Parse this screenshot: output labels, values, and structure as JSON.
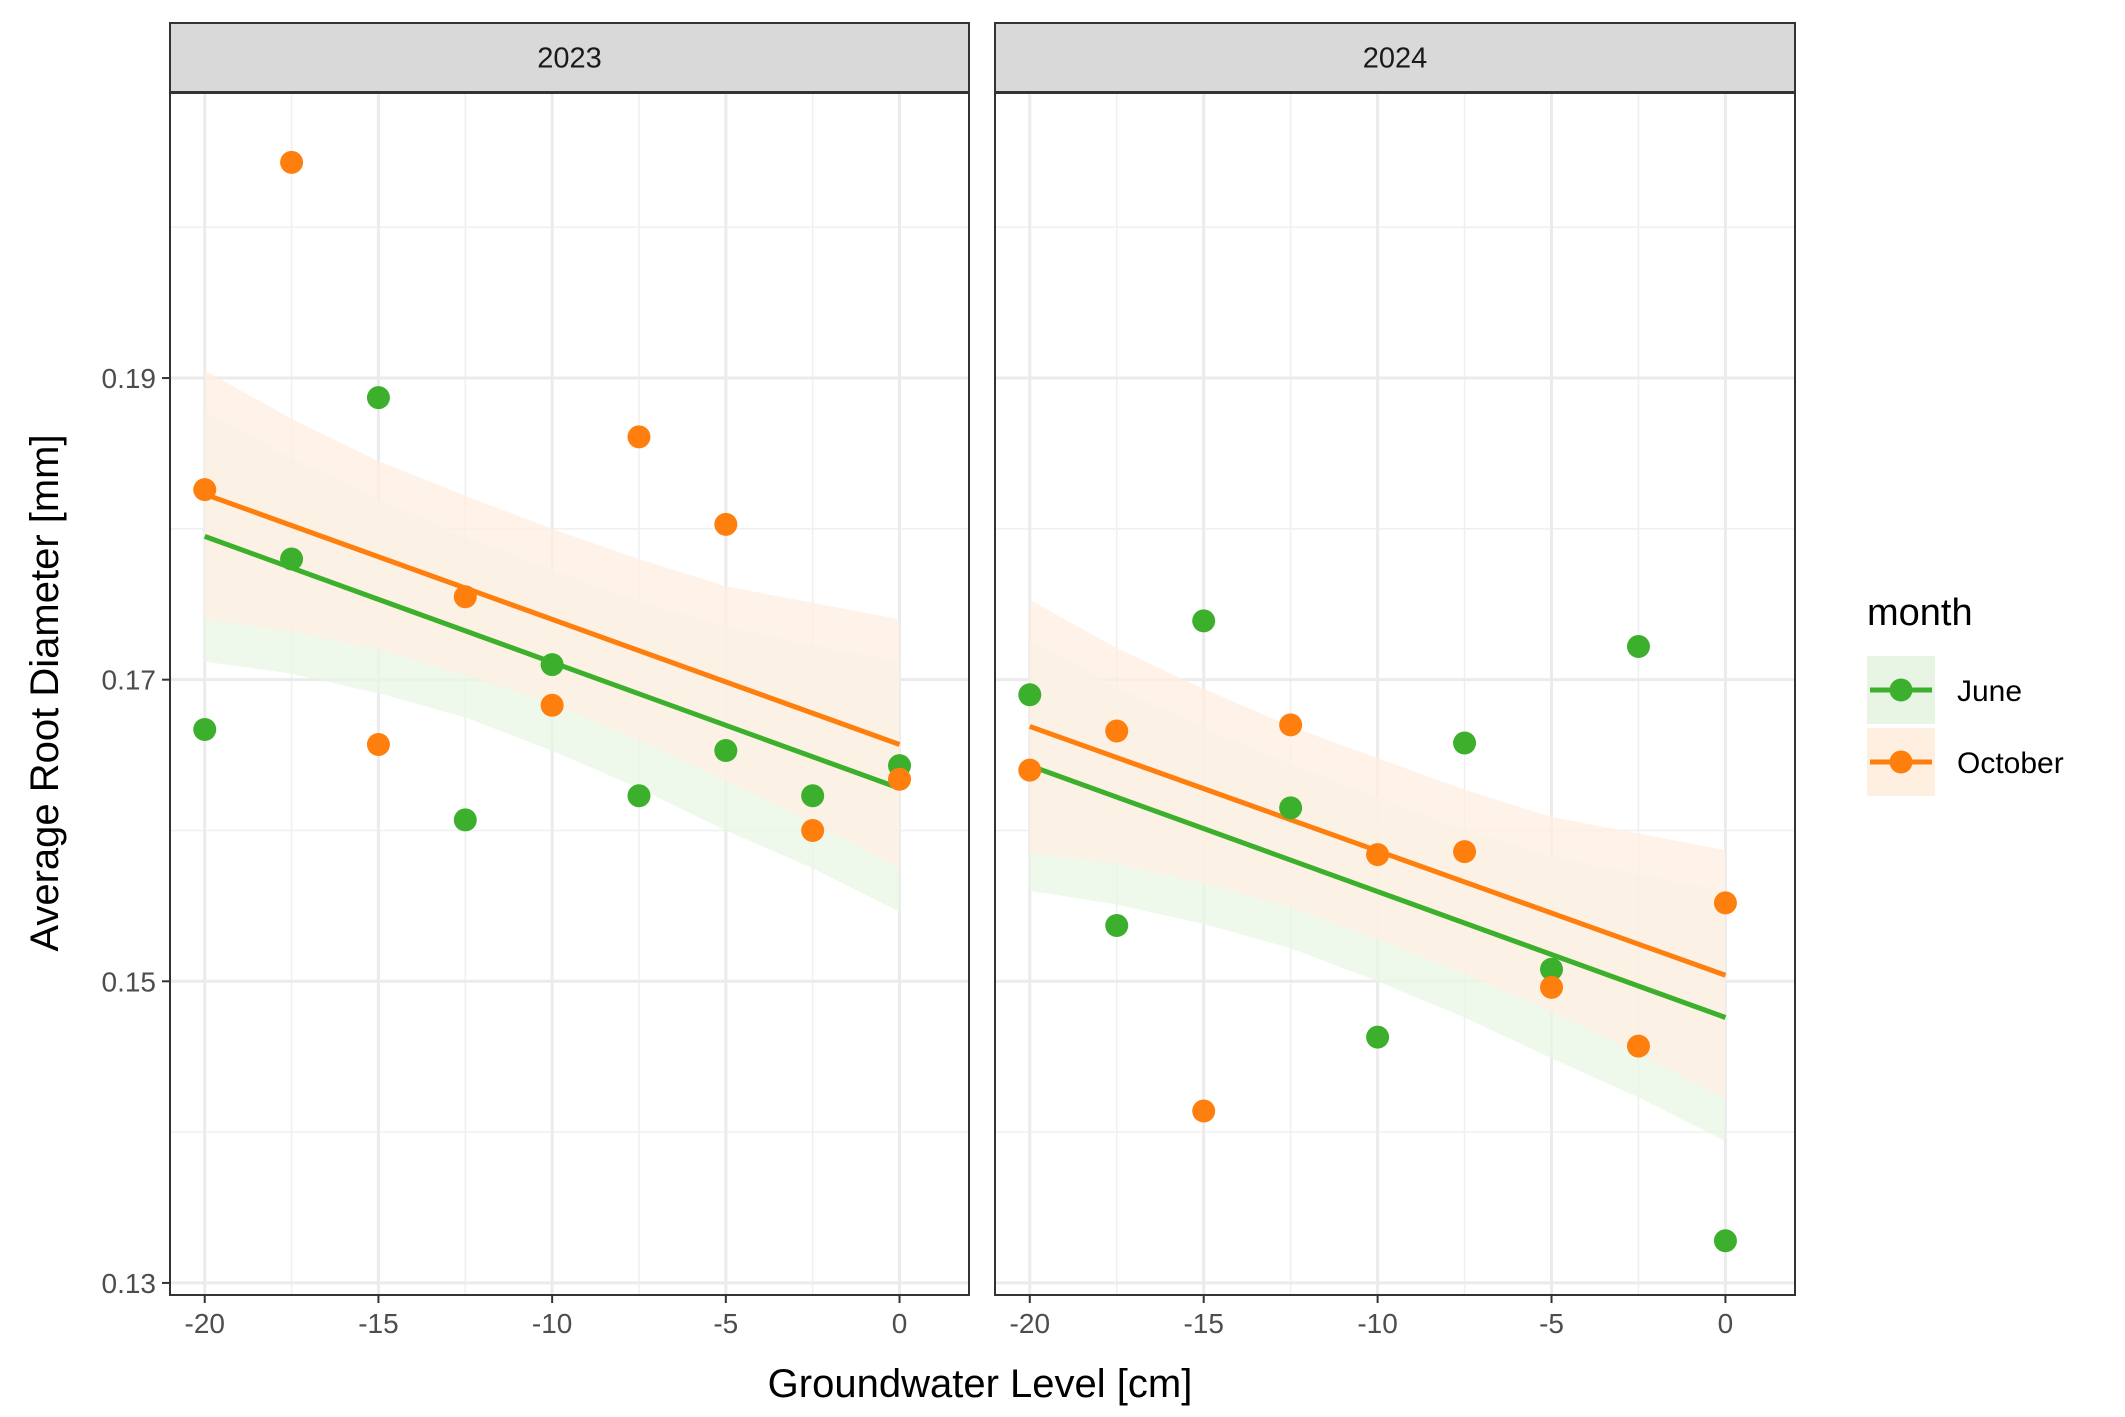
{
  "chart_data": {
    "type": "scatter",
    "xlabel": "Groundwater Level [cm]",
    "ylabel": "Average Root Diameter [mm]",
    "xlim": [
      -21,
      2
    ],
    "ylim": [
      0.1292,
      0.2089
    ],
    "x_ticks": [
      -20,
      -15,
      -10,
      -5,
      0
    ],
    "x_tick_labels": [
      "-20",
      "-15",
      "-10",
      "-5",
      "0"
    ],
    "x_minor": [
      -17.5,
      -12.5,
      -7.5,
      -2.5
    ],
    "y_ticks": [
      0.13,
      0.15,
      0.17,
      0.19
    ],
    "y_tick_labels": [
      "0.13",
      "0.15",
      "0.17",
      "0.19"
    ],
    "y_minor": [
      0.14,
      0.16,
      0.18,
      0.2
    ],
    "grid": true,
    "legend": {
      "title": "month",
      "position": "right",
      "entries": [
        {
          "label": "June",
          "color": "#3CB02D",
          "fill": "#E8F5E4"
        },
        {
          "label": "October",
          "color": "#FF7F0E",
          "fill": "#FFEFE1"
        }
      ]
    },
    "panels": [
      {
        "strip": "2023",
        "series": [
          {
            "name": "June",
            "color": "#3CB02D",
            "points": [
              [
                -20,
                0.1667
              ],
              [
                -17.5,
                0.178
              ],
              [
                -15,
                0.1887
              ],
              [
                -12.5,
                0.1607
              ],
              [
                -10,
                0.171
              ],
              [
                -7.5,
                0.1623
              ],
              [
                -5,
                0.1653
              ],
              [
                -2.5,
                0.1623
              ],
              [
                0,
                0.1643
              ]
            ],
            "fit": [
              [
                -20,
                0.1795
              ],
              [
                0,
                0.1628
              ]
            ],
            "band": [
              [
                -20,
                0.1712,
                0.1878
              ],
              [
                -17.5,
                0.1704,
                0.1847
              ],
              [
                -15,
                0.1691,
                0.182
              ],
              [
                -12.5,
                0.1675,
                0.1795
              ],
              [
                -10,
                0.1653,
                0.1773
              ],
              [
                -7.5,
                0.1628,
                0.1752
              ],
              [
                -5,
                0.16,
                0.1735
              ],
              [
                -2.5,
                0.1575,
                0.1723
              ],
              [
                0,
                0.1546,
                0.1712
              ]
            ]
          },
          {
            "name": "October",
            "color": "#FF7F0E",
            "points": [
              [
                -20,
                0.1826
              ],
              [
                -17.5,
                0.2043
              ],
              [
                -15,
                0.1657
              ],
              [
                -12.5,
                0.1755
              ],
              [
                -10,
                0.1683
              ],
              [
                -7.5,
                0.1861
              ],
              [
                -5,
                0.1803
              ],
              [
                -2.5,
                0.16
              ],
              [
                0,
                0.1634
              ]
            ],
            "fit": [
              [
                -20,
                0.1823
              ],
              [
                0,
                0.1657
              ]
            ],
            "band": [
              [
                -20,
                0.174,
                0.1905
              ],
              [
                -17.5,
                0.1732,
                0.1873
              ],
              [
                -15,
                0.172,
                0.1845
              ],
              [
                -12.5,
                0.1703,
                0.1822
              ],
              [
                -10,
                0.1684,
                0.18
              ],
              [
                -7.5,
                0.166,
                0.178
              ],
              [
                -5,
                0.1633,
                0.1762
              ],
              [
                -2.5,
                0.1605,
                0.1751
              ],
              [
                0,
                0.1575,
                0.174
              ]
            ]
          }
        ]
      },
      {
        "strip": "2024",
        "series": [
          {
            "name": "June",
            "color": "#3CB02D",
            "points": [
              [
                -20,
                0.169
              ],
              [
                -17.5,
                0.1537
              ],
              [
                -15,
                0.1739
              ],
              [
                -12.5,
                0.1615
              ],
              [
                -10,
                0.1463
              ],
              [
                -7.5,
                0.1658
              ],
              [
                -5,
                0.1508
              ],
              [
                -2.5,
                0.1722
              ],
              [
                0,
                0.1328
              ]
            ],
            "fit": [
              [
                -20,
                0.1643
              ],
              [
                0,
                0.1476
              ]
            ],
            "band": [
              [
                -20,
                0.156,
                0.1727
              ],
              [
                -17.5,
                0.1551,
                0.1695
              ],
              [
                -15,
                0.1538,
                0.1668
              ],
              [
                -12.5,
                0.1522,
                0.1644
              ],
              [
                -10,
                0.15,
                0.1622
              ],
              [
                -7.5,
                0.1476,
                0.16
              ],
              [
                -5,
                0.1449,
                0.1583
              ],
              [
                -2.5,
                0.1423,
                0.1571
              ],
              [
                0,
                0.1394,
                0.156
              ]
            ]
          },
          {
            "name": "October",
            "color": "#FF7F0E",
            "points": [
              [
                -20,
                0.164
              ],
              [
                -17.5,
                0.1666
              ],
              [
                -15,
                0.1414
              ],
              [
                -12.5,
                0.167
              ],
              [
                -10,
                0.1584
              ],
              [
                -7.5,
                0.1586
              ],
              [
                -5,
                0.1496
              ],
              [
                -2.5,
                0.1457
              ],
              [
                0,
                0.1552
              ]
            ],
            "fit": [
              [
                -20,
                0.1669
              ],
              [
                0,
                0.1504
              ]
            ],
            "band": [
              [
                -20,
                0.1585,
                0.1753
              ],
              [
                -17.5,
                0.1578,
                0.1721
              ],
              [
                -15,
                0.1565,
                0.1694
              ],
              [
                -12.5,
                0.1549,
                0.1669
              ],
              [
                -10,
                0.1528,
                0.1648
              ],
              [
                -7.5,
                0.1505,
                0.1627
              ],
              [
                -5,
                0.148,
                0.1609
              ],
              [
                -2.5,
                0.1452,
                0.1598
              ],
              [
                0,
                0.1422,
                0.1587
              ]
            ]
          }
        ]
      }
    ]
  }
}
